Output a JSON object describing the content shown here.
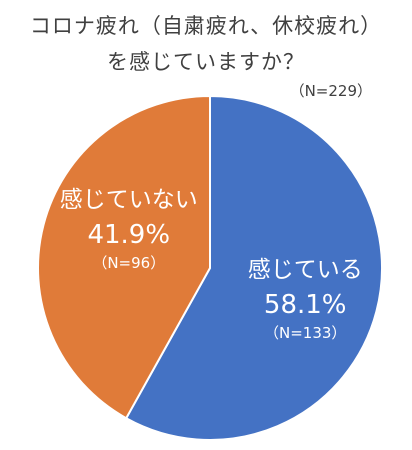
{
  "chart_data": {
    "type": "pie",
    "title_line1": "コロナ疲れ（自粛疲れ、休校疲れ）",
    "title_line2": "を感じていますか？",
    "sample_size": "（N=229）",
    "slices": [
      {
        "label": "感じている",
        "value": 58.1,
        "percent_label": "58.1%",
        "count_label": "（N=133）",
        "color": "#4472C4"
      },
      {
        "label": "感じていない",
        "value": 41.9,
        "percent_label": "41.9%",
        "count_label": "（N=96）",
        "color": "#E07B39"
      }
    ],
    "start_angle_deg": 0,
    "direction": "clockwise",
    "legend": "none"
  }
}
